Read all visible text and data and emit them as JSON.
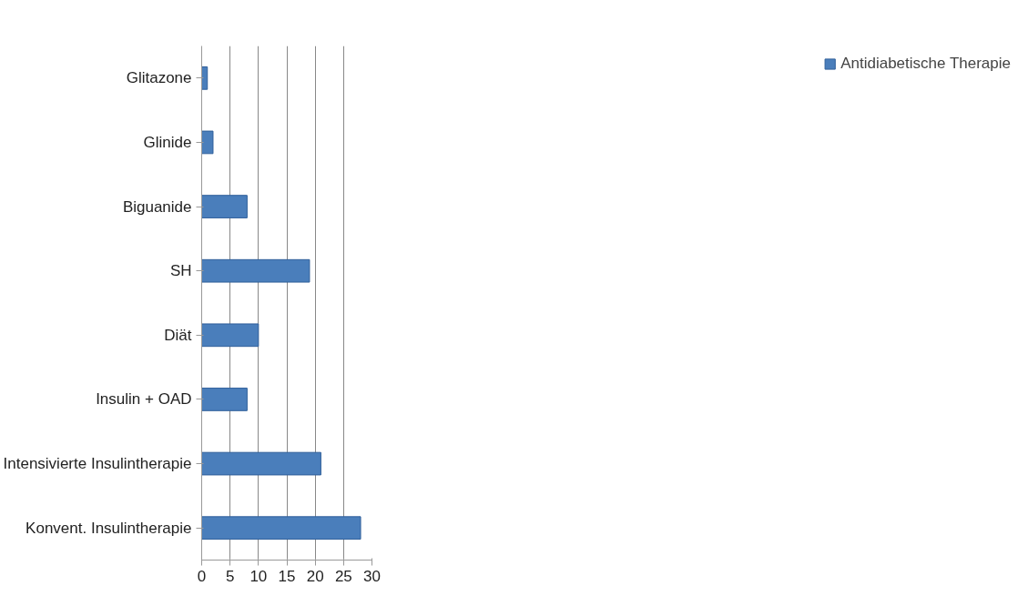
{
  "chart_data": {
    "type": "bar",
    "orientation": "horizontal",
    "categories": [
      "Glitazone",
      "Glinide",
      "Biguanide",
      "SH",
      "Diät",
      "Insulin + OAD",
      "Intensivierte Insulintherapie",
      "Konvent. Insulintherapie"
    ],
    "series": [
      {
        "name": "Antidiabetische Therapie",
        "color": "#4a7ebb",
        "values": [
          1,
          2,
          8,
          19,
          10,
          8,
          21,
          28
        ]
      }
    ],
    "xlim": [
      0,
      30
    ],
    "xticks": [
      0,
      5,
      10,
      15,
      20,
      25,
      30
    ],
    "grid": "x",
    "legend": "right"
  }
}
